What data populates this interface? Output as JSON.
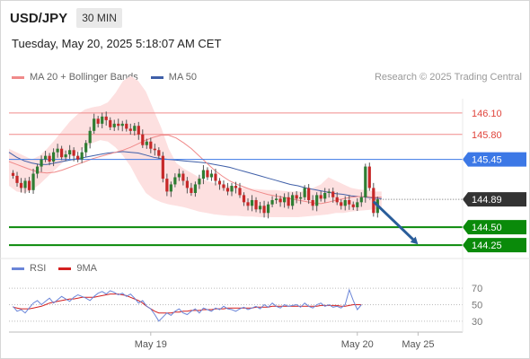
{
  "header": {
    "symbol": "USD/JPY",
    "timeframe": "30 MIN"
  },
  "datetime": "Tuesday, May 20, 2025 5:18:07 AM CET",
  "legend": {
    "items": [
      {
        "label": "MA 20 + Bollinger Bands",
        "color": "#f08a8a"
      },
      {
        "label": "MA 50",
        "color": "#3f5fa8"
      }
    ],
    "credit": "Research © 2025 Trading Central"
  },
  "rsi_legend": {
    "items": [
      {
        "label": "RSI",
        "color": "#6a85d8"
      },
      {
        "label": "9MA",
        "color": "#d42020"
      }
    ]
  },
  "colors": {
    "up": "#2e7d32",
    "down": "#c62828",
    "band_fill": "#fde0e0",
    "ma20": "#f08a8a",
    "ma50": "#3f5fa8",
    "support": "#0a8a0a",
    "pivot": "#3c78e6",
    "resistance": "#f08a8a",
    "current": "#333333",
    "arrow": "#2a5d9a"
  },
  "chart_data": {
    "type": "candlestick",
    "ylim": [
      144.1,
      146.3
    ],
    "xlim": [
      0,
      112
    ],
    "x_ticks": [
      {
        "label": "May 19",
        "x": 35
      },
      {
        "label": "May 20",
        "x": 86
      },
      {
        "label": "May 25",
        "x": 101
      }
    ],
    "levels": [
      {
        "value": 146.1,
        "label": "146.10",
        "role": "resistance"
      },
      {
        "value": 145.8,
        "label": "145.80",
        "role": "resistance"
      },
      {
        "value": 145.45,
        "label": "145.45",
        "role": "pivot"
      },
      {
        "value": 144.89,
        "label": "144.89",
        "role": "current"
      },
      {
        "value": 144.5,
        "label": "144.50",
        "role": "support"
      },
      {
        "value": 144.25,
        "label": "144.25",
        "role": "support"
      }
    ],
    "closes": [
      145.22,
      145.12,
      145.05,
      145.15,
      145.02,
      145.25,
      145.35,
      145.45,
      145.5,
      145.42,
      145.55,
      145.6,
      145.48,
      145.52,
      145.58,
      145.5,
      145.45,
      145.55,
      145.68,
      145.85,
      146.02,
      145.95,
      146.05,
      146.0,
      145.9,
      145.95,
      145.92,
      145.95,
      145.88,
      145.85,
      145.92,
      145.8,
      145.65,
      145.7,
      145.6,
      145.58,
      145.5,
      145.18,
      145.0,
      145.1,
      145.2,
      145.25,
      145.15,
      145.05,
      144.98,
      145.1,
      145.18,
      145.3,
      145.2,
      145.25,
      145.15,
      145.1,
      145.05,
      145.0,
      145.08,
      145.05,
      144.95,
      144.85,
      144.8,
      144.88,
      144.75,
      144.8,
      144.7,
      144.82,
      144.88,
      144.9,
      144.85,
      144.92,
      144.8,
      144.95,
      144.9,
      144.92,
      145.05,
      144.88,
      144.8,
      144.95,
      144.9,
      144.98,
      145.0,
      144.92,
      144.85,
      144.8,
      144.88,
      144.82,
      144.78,
      144.85,
      144.92,
      145.35,
      145.05,
      144.7,
      144.89
    ],
    "ma20": [
      145.42,
      145.38,
      145.34,
      145.3,
      145.27,
      145.26,
      145.27,
      145.3,
      145.34,
      145.38,
      145.42,
      145.46,
      145.49,
      145.52,
      145.55,
      145.58,
      145.62,
      145.67,
      145.72,
      145.76,
      145.79,
      145.79,
      145.75,
      145.68,
      145.6,
      145.5,
      145.4,
      145.3,
      145.22,
      145.15,
      145.1,
      145.06,
      145.02,
      144.99,
      144.96,
      144.94,
      144.92,
      144.9,
      144.88,
      144.86,
      144.84,
      144.83,
      144.85,
      144.88,
      144.9,
      144.92,
      144.93,
      144.93,
      144.92,
      144.92
    ],
    "ma50": [
      145.55,
      145.48,
      145.43,
      145.4,
      145.38,
      145.38,
      145.4,
      145.42,
      145.44,
      145.46,
      145.48,
      145.5,
      145.52,
      145.54,
      145.55,
      145.56,
      145.55,
      145.54,
      145.51,
      145.48,
      145.46,
      145.45,
      145.44,
      145.43,
      145.42,
      145.41,
      145.4,
      145.38,
      145.36,
      145.34,
      145.31,
      145.28,
      145.25,
      145.22,
      145.19,
      145.16,
      145.13,
      145.1,
      145.08,
      145.05,
      145.03,
      145.01,
      144.99,
      144.97,
      144.96,
      144.94,
      144.93,
      144.92,
      144.91,
      144.9
    ],
    "band_upper": [
      145.6,
      145.55,
      145.5,
      145.45,
      145.5,
      145.6,
      145.72,
      145.85,
      145.98,
      146.08,
      146.15,
      146.18,
      146.2,
      146.25,
      146.38,
      146.55,
      146.62,
      146.55,
      146.4,
      146.15,
      145.9,
      145.6,
      145.4,
      145.32,
      145.26,
      145.2,
      145.15,
      145.12,
      145.1,
      145.08,
      145.06,
      145.05,
      145.04,
      145.03,
      145.02,
      145.02,
      145.01,
      145.0,
      145.0,
      145.0,
      145.05,
      145.1,
      145.2,
      145.15,
      145.1,
      145.05,
      145.03,
      145.02,
      145.0,
      145.0
    ],
    "band_lower": [
      145.08,
      145.0,
      144.98,
      145.02,
      145.1,
      145.2,
      145.3,
      145.4,
      145.48,
      145.55,
      145.62,
      145.68,
      145.72,
      145.7,
      145.62,
      145.5,
      145.35,
      145.15,
      144.98,
      144.9,
      144.85,
      144.82,
      144.8,
      144.78,
      144.75,
      144.72,
      144.7,
      144.68,
      144.67,
      144.66,
      144.66,
      144.65,
      144.65,
      144.64,
      144.64,
      144.64,
      144.64,
      144.64,
      144.64,
      144.65,
      144.66,
      144.67,
      144.68,
      144.7,
      144.7,
      144.72,
      144.73,
      144.74,
      144.75,
      144.76
    ],
    "forecast_arrow": {
      "from": [
        90,
        144.86
      ],
      "to": [
        101,
        144.26
      ]
    },
    "rsi": {
      "ylim": [
        20,
        80
      ],
      "ticks": [
        70,
        50,
        30
      ],
      "rsi": [
        48,
        42,
        44,
        40,
        46,
        52,
        55,
        50,
        54,
        58,
        52,
        56,
        60,
        57,
        54,
        59,
        62,
        60,
        58,
        55,
        60,
        64,
        66,
        63,
        67,
        65,
        62,
        64,
        60,
        63,
        58,
        52,
        55,
        48,
        45,
        38,
        30,
        35,
        40,
        37,
        42,
        45,
        40,
        38,
        42,
        45,
        40,
        46,
        44,
        42,
        46,
        44,
        48,
        45,
        44,
        42,
        45,
        47,
        44,
        46,
        48,
        45,
        50,
        47,
        52,
        48,
        46,
        50,
        48,
        49,
        50,
        47,
        52,
        48,
        46,
        50,
        52,
        48,
        50,
        47,
        48,
        46,
        50,
        68,
        55,
        44,
        50
      ],
      "ma9": [
        47,
        46,
        45,
        45,
        45,
        46,
        47,
        48,
        50,
        52,
        53,
        54,
        55,
        56,
        57,
        57,
        58,
        59,
        59,
        59,
        59,
        60,
        61,
        62,
        63,
        63,
        63,
        62,
        61,
        59,
        57,
        55,
        52,
        48,
        45,
        42,
        40,
        40,
        40,
        40,
        41,
        41,
        42,
        42,
        43,
        43,
        43,
        44,
        44,
        44,
        45,
        45,
        45,
        46,
        46,
        46,
        46,
        46,
        46,
        46,
        47,
        47,
        47,
        47,
        48,
        48,
        48,
        48,
        48,
        48,
        48,
        48,
        48,
        48,
        48,
        48,
        49,
        49,
        49,
        49,
        49,
        48,
        48,
        49,
        50,
        50,
        50
      ]
    }
  }
}
